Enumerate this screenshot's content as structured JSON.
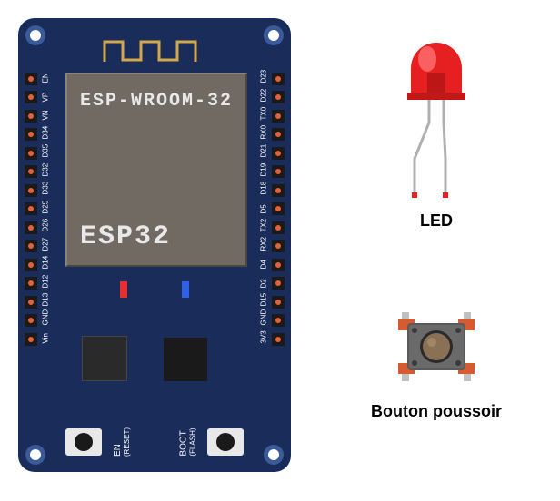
{
  "board": {
    "color": "#1a2d5a",
    "shield": {
      "top_text": "ESP-WROOM-32",
      "bottom_text": "ESP32",
      "color": "#706a62"
    },
    "pins_left": [
      "EN",
      "VP",
      "VN",
      "D34",
      "D35",
      "D32",
      "D33",
      "D25",
      "D26",
      "D27",
      "D14",
      "D12",
      "D13",
      "GND",
      "Vin"
    ],
    "pins_right": [
      "D23",
      "D22",
      "TX0",
      "RX0",
      "D21",
      "D19",
      "D18",
      "D5",
      "TX2",
      "RX2",
      "D4",
      "D2",
      "D15",
      "GND",
      "3V3"
    ],
    "indicator_led_red": "#e63030",
    "indicator_led_blue": "#3060e6",
    "button_en": {
      "label": "EN",
      "sub": "(RESET)"
    },
    "button_boot": {
      "label": "BOOT",
      "sub": "(FLASH)"
    }
  },
  "led": {
    "label": "LED",
    "body_color": "#e62020",
    "highlight_color": "#ff6060"
  },
  "pushbutton": {
    "label": "Bouton poussoir",
    "body_color": "#5a5a5a",
    "cap_color": "#8a7055",
    "leg_color": "#c0c0c0",
    "pcb_color": "#d85a30"
  }
}
